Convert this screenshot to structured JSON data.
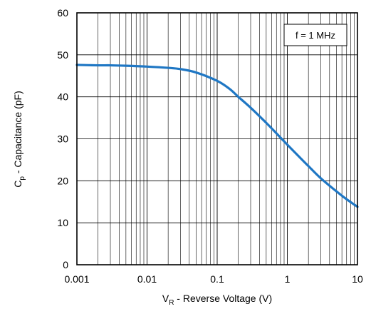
{
  "chart_data": {
    "type": "line",
    "title": "",
    "x_scale": "log",
    "xlim": [
      0.001,
      10
    ],
    "ylim": [
      0,
      60
    ],
    "x_ticks": [
      0.001,
      0.01,
      0.1,
      1,
      10
    ],
    "x_tick_labels": [
      "0.001",
      "0.01",
      "0.1",
      "1",
      "10"
    ],
    "y_ticks": [
      0,
      10,
      20,
      30,
      40,
      50,
      60
    ],
    "y_tick_labels": [
      "0",
      "10",
      "20",
      "30",
      "40",
      "50",
      "60"
    ],
    "xlabel": {
      "main": "V",
      "sub": "R",
      "rest": " - Reverse Voltage (V)"
    },
    "ylabel": {
      "main": "C",
      "sub": "p",
      "rest": " - Capacitance (pF)"
    },
    "grid": true,
    "annotation": "f = 1 MHz",
    "line_color": "#1f77c4",
    "series": [
      {
        "x": [
          0.001,
          0.002,
          0.003,
          0.005,
          0.01,
          0.02,
          0.03,
          0.05,
          0.1,
          0.15,
          0.2,
          0.3,
          0.5,
          0.7,
          1,
          1.5,
          2,
          3,
          5,
          7,
          10
        ],
        "values": [
          47.6,
          47.5,
          47.5,
          47.4,
          47.2,
          46.9,
          46.6,
          45.8,
          43.8,
          41.9,
          40.0,
          37.4,
          33.8,
          31.3,
          28.6,
          25.6,
          23.5,
          20.6,
          17.5,
          15.6,
          13.8
        ]
      }
    ]
  }
}
